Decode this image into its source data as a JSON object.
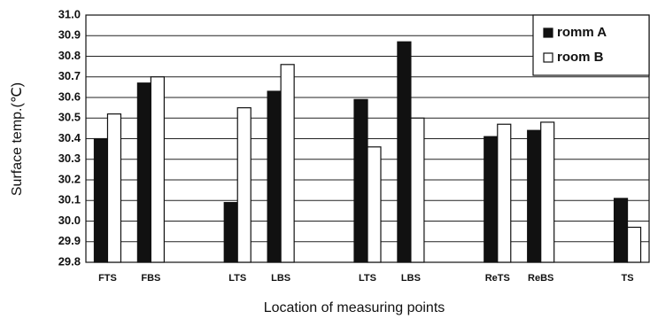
{
  "chart_data": {
    "type": "bar",
    "y_label": "Surface temp.(℃)",
    "x_label": "Location of measuring points",
    "categories": [
      "FTS",
      "FBS",
      null,
      "LTS",
      "LBS",
      null,
      "LTS",
      "LBS",
      null,
      "ReTS",
      "ReBS",
      null,
      "TS"
    ],
    "series": [
      {
        "name": "romm A",
        "color": "#111111",
        "values": [
          30.4,
          30.67,
          null,
          30.09,
          30.63,
          null,
          30.59,
          30.87,
          null,
          30.41,
          30.44,
          null,
          30.11
        ]
      },
      {
        "name": "room B",
        "color": "#ffffff",
        "values": [
          30.52,
          30.7,
          null,
          30.55,
          30.76,
          null,
          30.36,
          30.5,
          null,
          30.47,
          30.48,
          null,
          29.97
        ]
      }
    ],
    "ylim": [
      29.8,
      31.0
    ],
    "yticks": [
      29.8,
      29.9,
      {
        "value": 30.0,
        "label": "30.0"
      },
      30.1,
      30.2,
      30.3,
      30.4,
      30.5,
      30.6,
      30.7,
      30.8,
      30.9,
      {
        "value": 31.0,
        "label": "31.0"
      }
    ],
    "grid": true,
    "legend": "top-right"
  }
}
